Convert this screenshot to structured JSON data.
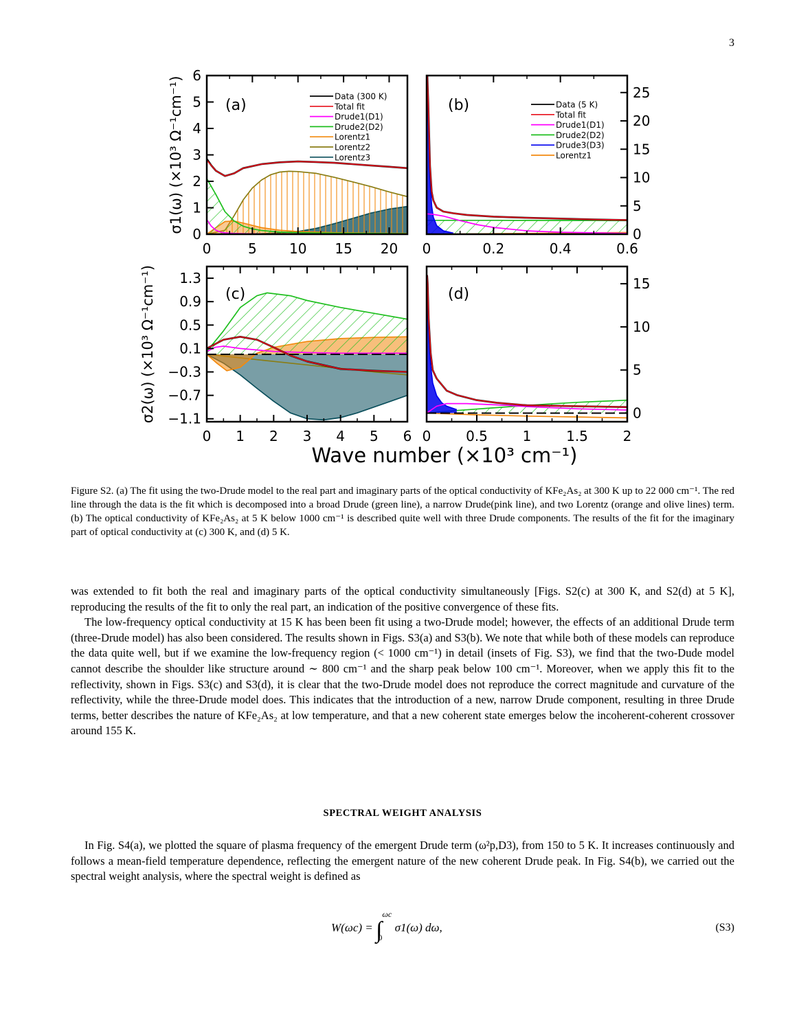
{
  "page": {
    "number": "3",
    "caption": "Figure S2. (a) The fit using the two-Drude model to the real part and imaginary parts of the optical conductivity of KFe₂As₂ at 300 K up to 22 000 cm⁻¹. The red line through the data is the fit which is decomposed into a broad Drude (green line), a narrow Drude(pink line), and two Lorentz (orange and olive lines) term. (b) The optical conductivity of KFe₂As₂ at 5 K below 1000 cm⁻¹ is described quite well with three Drude components. The results of the fit for the imaginary part of optical conductivity at (c) 300 K, and (d) 5 K.",
    "paragraph1": "was extended to fit both the real and imaginary parts of the optical conductivity simultaneously [Figs. S2(c) at 300 K, and S2(d) at 5 K], reproducing the results of the fit to only the real part, an indication of the positive convergence of these fits.",
    "paragraph2": "The low-frequency optical conductivity at 15 K has been been fit using a two-Drude model; however, the effects of an additional Drude term (three-Drude model) has also been considered. The results shown in Figs. S3(a) and S3(b). We note that while both of these models can reproduce the data quite well, but if we examine the low-frequency region (< 1000 cm⁻¹) in detail (insets of Fig. S3), we find that the two-Dude model cannot describe the shoulder like structure around ∼ 800 cm⁻¹ and the sharp peak below 100 cm⁻¹. Moreover, when we apply this fit to the reflectivity, shown in Figs. S3(c) and S3(d), it is clear that the two-Drude model does not reproduce the correct magnitude and curvature of the reflectivity, while the three-Drude model does. This indicates that the introduction of a new, narrow Drude component, resulting in three Drude terms, better describes the nature of KFe₂As₂ at low temperature, and that a new coherent state emerges below the incoherent-coherent crossover around 155 K.",
    "section_heading": "SPECTRAL WEIGHT ANALYSIS",
    "paragraph3": "In Fig. S4(a), we plotted the square of plasma frequency of the emergent Drude term (ω²p,D3), from 150 to 5 K. It increases continuously and follows a mean-field temperature dependence, reflecting the emergent nature of the new coherent Drude peak. In Fig. S4(b), we carried out the spectral weight analysis, where the spectral weight is defined as",
    "equation": {
      "lhs": "W(ωc) = ",
      "integral": "∫",
      "upper": "ωc",
      "lower": "0",
      "rhs": " σ1(ω) dω,",
      "number": "(S3)"
    }
  },
  "colors": {
    "data": "#000000",
    "total_fit": "#e8101c",
    "drude1": "#ff00ff",
    "drude2": "#1fbf1f",
    "drude3": "#0000ee",
    "lorentz1": "#f28a0f",
    "lorentz2": "#8a7d14",
    "lorentz3": "#0b4f5c"
  },
  "chart_data": [
    {
      "id": "a",
      "type": "line",
      "panel_label": "(a)",
      "xlim": [
        0,
        22
      ],
      "ylim": [
        0,
        6
      ],
      "xticks": [
        "0",
        "5",
        "10",
        "15",
        "20"
      ],
      "yticks": [
        "0",
        "1",
        "2",
        "3",
        "4",
        "5",
        "6"
      ],
      "ylabel": "σ1(ω) (×10³ Ω⁻¹cm⁻¹)",
      "legend": [
        "Data (300 K)",
        "Total fit",
        "Drude1(D1)",
        "Drude2(D2)",
        "Lorentz1",
        "Lorentz2",
        "Lorentz3"
      ],
      "legend_position": "top-right",
      "series": [
        {
          "name": "Data (300 K)",
          "x": [
            0,
            0.5,
            1,
            2,
            3,
            4,
            6,
            8,
            10,
            12,
            14,
            16,
            18,
            20,
            22
          ],
          "y": [
            2.85,
            2.6,
            2.4,
            2.2,
            2.3,
            2.5,
            2.65,
            2.72,
            2.75,
            2.73,
            2.7,
            2.65,
            2.6,
            2.55,
            2.5
          ]
        },
        {
          "name": "Total fit",
          "x": [
            0,
            0.5,
            1,
            2,
            3,
            4,
            6,
            8,
            10,
            12,
            14,
            16,
            18,
            20,
            22
          ],
          "y": [
            2.8,
            2.6,
            2.4,
            2.2,
            2.3,
            2.5,
            2.65,
            2.72,
            2.75,
            2.73,
            2.7,
            2.65,
            2.6,
            2.55,
            2.5
          ]
        },
        {
          "name": "Drude1(D1)",
          "x": [
            0,
            0.5,
            1,
            1.5,
            2,
            3,
            4,
            6
          ],
          "y": [
            0.55,
            0.3,
            0.15,
            0.08,
            0.05,
            0.03,
            0.02,
            0.01
          ]
        },
        {
          "name": "Drude2(D2)",
          "x": [
            0,
            1,
            2,
            3,
            4,
            5,
            6,
            8,
            10,
            14,
            18,
            22
          ],
          "y": [
            2.1,
            1.5,
            0.85,
            0.5,
            0.3,
            0.2,
            0.14,
            0.08,
            0.06,
            0.04,
            0.03,
            0.02
          ]
        },
        {
          "name": "Lorentz1",
          "x": [
            0,
            1,
            2,
            3,
            4,
            6,
            8,
            10,
            14,
            18,
            22
          ],
          "y": [
            0.0,
            0.25,
            0.48,
            0.5,
            0.42,
            0.25,
            0.15,
            0.1,
            0.06,
            0.04,
            0.03
          ]
        },
        {
          "name": "Lorentz2",
          "x": [
            0,
            2,
            3,
            4,
            5,
            6,
            7,
            8,
            9,
            10,
            12,
            14,
            16,
            18,
            20,
            22
          ],
          "y": [
            0.0,
            0.15,
            0.7,
            1.3,
            1.75,
            2.05,
            2.25,
            2.35,
            2.38,
            2.37,
            2.3,
            2.15,
            1.98,
            1.8,
            1.6,
            1.42
          ]
        },
        {
          "name": "Lorentz3",
          "x": [
            0,
            6,
            8,
            10,
            12,
            14,
            16,
            18,
            20,
            22
          ],
          "y": [
            0.0,
            0.02,
            0.05,
            0.1,
            0.22,
            0.4,
            0.6,
            0.8,
            0.95,
            1.05
          ]
        }
      ]
    },
    {
      "id": "b",
      "type": "line",
      "panel_label": "(b)",
      "xlim": [
        0,
        0.6
      ],
      "ylim": [
        0,
        28
      ],
      "xticks": [
        "0",
        "0.2",
        "0.4",
        "0.6"
      ],
      "yticks": [
        "0",
        "5",
        "10",
        "15",
        "20",
        "25"
      ],
      "legend": [
        "Data (5 K)",
        "Total fit",
        "Drude1(D1)",
        "Drude2(D2)",
        "Drude3(D3)",
        "Lorentz1"
      ],
      "legend_position": "top-right",
      "series": [
        {
          "name": "Data (5 K)",
          "x": [
            0.002,
            0.005,
            0.01,
            0.015,
            0.02,
            0.03,
            0.05,
            0.08,
            0.12,
            0.2,
            0.3,
            0.4,
            0.5,
            0.6
          ],
          "y": [
            28,
            23,
            12,
            7.5,
            6,
            4.7,
            4,
            3.7,
            3.4,
            3.1,
            2.9,
            2.75,
            2.6,
            2.5
          ]
        },
        {
          "name": "Total fit",
          "x": [
            0.002,
            0.005,
            0.01,
            0.015,
            0.02,
            0.03,
            0.05,
            0.08,
            0.12,
            0.2,
            0.3,
            0.4,
            0.5,
            0.6
          ],
          "y": [
            28,
            23,
            12,
            7.5,
            6,
            4.7,
            4,
            3.7,
            3.4,
            3.1,
            2.9,
            2.75,
            2.6,
            2.5
          ]
        },
        {
          "name": "Drude1(D1)",
          "x": [
            0,
            0.02,
            0.05,
            0.1,
            0.15,
            0.2,
            0.3,
            0.4,
            0.6
          ],
          "y": [
            3.6,
            3.5,
            3.2,
            2.4,
            1.7,
            1.2,
            0.6,
            0.35,
            0.15
          ]
        },
        {
          "name": "Drude2(D2)",
          "x": [
            0,
            0.1,
            0.2,
            0.3,
            0.4,
            0.5,
            0.6
          ],
          "y": [
            2.45,
            2.45,
            2.45,
            2.44,
            2.43,
            2.42,
            2.4
          ]
        },
        {
          "name": "Drude3(D3)",
          "x": [
            0.002,
            0.005,
            0.01,
            0.015,
            0.02,
            0.03,
            0.05,
            0.08
          ],
          "y": [
            27,
            21,
            10,
            5,
            3,
            1.5,
            0.6,
            0.2
          ]
        },
        {
          "name": "Lorentz1",
          "x": [
            0,
            0.1,
            0.2,
            0.3,
            0.4,
            0.5,
            0.6
          ],
          "y": [
            0.0,
            0.05,
            0.1,
            0.15,
            0.2,
            0.25,
            0.3
          ]
        }
      ]
    },
    {
      "id": "c",
      "type": "line",
      "panel_label": "(c)",
      "xlim": [
        0,
        6
      ],
      "ylim": [
        -1.15,
        1.5
      ],
      "xticks": [
        "0",
        "1",
        "2",
        "3",
        "4",
        "5",
        "6"
      ],
      "yticks": [
        "−1.1",
        "−0.7",
        "−0.3",
        "0.1",
        "0.5",
        "0.9",
        "1.3"
      ],
      "ylabel": "σ2(ω) (×10³ Ω⁻¹cm⁻¹)",
      "series": [
        {
          "name": "Data (300 K)",
          "x": [
            0,
            0.5,
            1,
            1.5,
            2,
            2.5,
            3,
            4,
            5,
            6
          ],
          "y": [
            0.1,
            0.25,
            0.3,
            0.25,
            0.12,
            -0.02,
            -0.12,
            -0.25,
            -0.28,
            -0.3
          ]
        },
        {
          "name": "Total fit",
          "x": [
            0,
            0.5,
            1,
            1.5,
            2,
            2.5,
            3,
            4,
            5,
            6
          ],
          "y": [
            0.1,
            0.25,
            0.3,
            0.25,
            0.12,
            -0.02,
            -0.12,
            -0.25,
            -0.28,
            -0.3
          ]
        },
        {
          "name": "Drude1(D1)",
          "x": [
            0,
            0.25,
            0.5,
            1,
            2,
            3,
            4,
            6
          ],
          "y": [
            0.05,
            0.12,
            0.14,
            0.1,
            0.05,
            0.03,
            0.02,
            0.02
          ]
        },
        {
          "name": "Drude2(D2)",
          "x": [
            0,
            0.5,
            1,
            1.5,
            1.8,
            2.5,
            3,
            4,
            5,
            6
          ],
          "y": [
            0.05,
            0.4,
            0.8,
            1.0,
            1.05,
            1.0,
            0.92,
            0.8,
            0.7,
            0.6
          ]
        },
        {
          "name": "Lorentz1",
          "x": [
            0,
            0.3,
            0.6,
            1,
            1.5,
            2,
            3,
            4,
            5,
            6
          ],
          "y": [
            0.0,
            -0.15,
            -0.28,
            -0.22,
            0.02,
            0.12,
            0.22,
            0.27,
            0.29,
            0.3
          ]
        },
        {
          "name": "Lorentz2",
          "x": [
            0,
            1,
            2,
            3,
            4,
            5,
            6
          ],
          "y": [
            0.0,
            -0.06,
            -0.12,
            -0.18,
            -0.24,
            -0.3,
            -0.35
          ]
        },
        {
          "name": "Lorentz3",
          "x": [
            0,
            0.5,
            1,
            1.5,
            2,
            2.5,
            3,
            3.5,
            4,
            4.5,
            5,
            5.5,
            6
          ],
          "y": [
            0.0,
            -0.15,
            -0.35,
            -0.58,
            -0.8,
            -1.0,
            -1.1,
            -1.12,
            -1.08,
            -1.0,
            -0.9,
            -0.8,
            -0.7
          ]
        }
      ]
    },
    {
      "id": "d",
      "type": "line",
      "panel_label": "(d)",
      "xlim": [
        0,
        2
      ],
      "ylim": [
        -1,
        17
      ],
      "xticks": [
        "0",
        "0.5",
        "1",
        "1.5",
        "2"
      ],
      "yticks": [
        "0",
        "5",
        "10",
        "15"
      ],
      "xlabel": "Wave number (×10³ cm⁻¹)",
      "series": [
        {
          "name": "Data (5 K)",
          "x": [
            0.005,
            0.01,
            0.02,
            0.04,
            0.06,
            0.1,
            0.2,
            0.3,
            0.5,
            0.7,
            1.0,
            1.5,
            2.0
          ],
          "y": [
            16,
            15,
            11,
            7,
            5,
            4,
            2.6,
            2.1,
            1.5,
            1.2,
            0.9,
            0.8,
            0.7
          ]
        },
        {
          "name": "Total fit",
          "x": [
            0.005,
            0.01,
            0.02,
            0.04,
            0.06,
            0.1,
            0.2,
            0.3,
            0.5,
            0.7,
            1.0,
            1.5,
            2.0
          ],
          "y": [
            16,
            15,
            11,
            7,
            5,
            4,
            2.6,
            2.1,
            1.5,
            1.2,
            0.9,
            0.8,
            0.7
          ]
        },
        {
          "name": "Drude1(D1)",
          "x": [
            0,
            0.1,
            0.2,
            0.4,
            0.6,
            0.8,
            1.0,
            1.5,
            2.0
          ],
          "y": [
            0.0,
            0.8,
            1.1,
            1.1,
            1.0,
            0.9,
            0.75,
            0.5,
            0.35
          ]
        },
        {
          "name": "Drude2(D2)",
          "x": [
            0,
            0.3,
            0.6,
            0.9,
            1.2,
            1.5,
            1.8,
            2.0
          ],
          "y": [
            0.0,
            0.3,
            0.55,
            0.8,
            1.05,
            1.25,
            1.4,
            1.5
          ]
        },
        {
          "name": "Drude3(D3)",
          "x": [
            0.005,
            0.01,
            0.02,
            0.04,
            0.06,
            0.1,
            0.15,
            0.2,
            0.3
          ],
          "y": [
            16,
            14,
            10,
            5.5,
            3.5,
            2.0,
            1.2,
            0.8,
            0.4
          ]
        },
        {
          "name": "Lorentz1",
          "x": [
            0,
            0.5,
            1,
            1.5,
            2
          ],
          "y": [
            0.0,
            -0.2,
            -0.35,
            -0.45,
            -0.55
          ]
        }
      ]
    }
  ]
}
